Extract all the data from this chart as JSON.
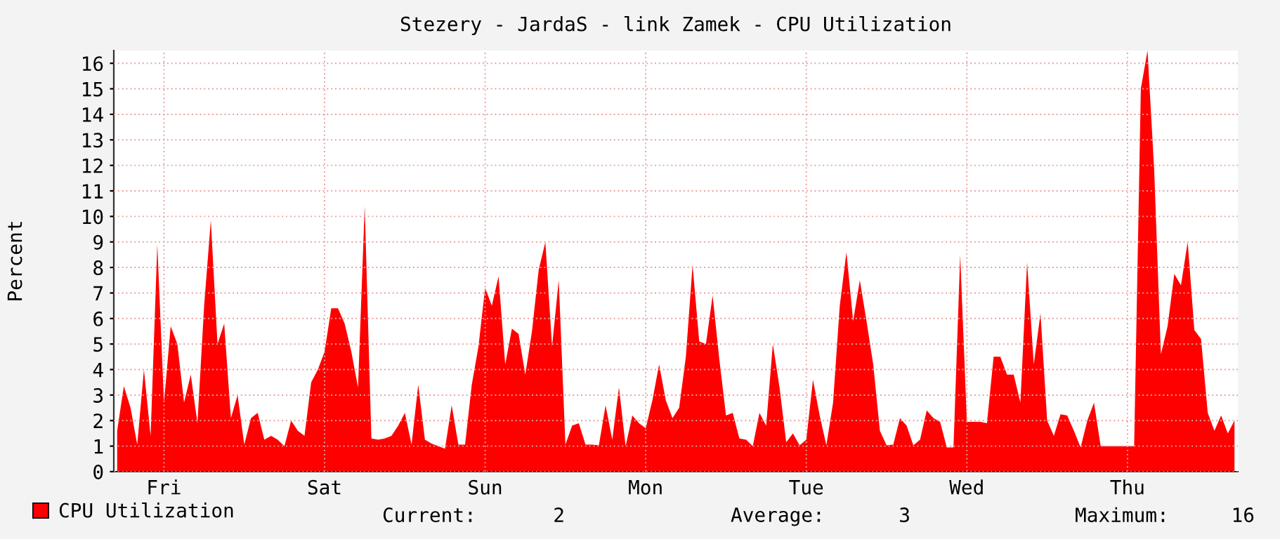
{
  "chart_data": {
    "type": "area",
    "title": "Stezery - JardaS - link Zamek - CPU Utilization",
    "ylabel": "Percent",
    "ylim": [
      0,
      16.5
    ],
    "yticks": [
      0,
      1,
      2,
      3,
      4,
      5,
      6,
      7,
      8,
      9,
      10,
      11,
      12,
      13,
      14,
      15,
      16
    ],
    "grid": true,
    "legend": "bottom left",
    "annotations": [
      "Current:",
      "2",
      "Average:",
      "3",
      "Maximum:",
      "16"
    ],
    "categories": [
      null,
      null,
      null,
      null,
      null,
      null,
      null,
      "Fri",
      null,
      null,
      null,
      null,
      null,
      null,
      null,
      null,
      null,
      null,
      null,
      null,
      null,
      null,
      null,
      null,
      null,
      null,
      null,
      null,
      null,
      null,
      null,
      "Sat",
      null,
      null,
      null,
      null,
      null,
      null,
      null,
      null,
      null,
      null,
      null,
      null,
      null,
      null,
      null,
      null,
      null,
      null,
      null,
      null,
      null,
      null,
      null,
      "Sun",
      null,
      null,
      null,
      null,
      null,
      null,
      null,
      null,
      null,
      null,
      null,
      null,
      null,
      null,
      null,
      null,
      null,
      null,
      null,
      null,
      null,
      null,
      null,
      "Mon",
      null,
      null,
      null,
      null,
      null,
      null,
      null,
      null,
      null,
      null,
      null,
      null,
      null,
      null,
      null,
      null,
      null,
      null,
      null,
      null,
      null,
      null,
      null,
      "Tue",
      null,
      null,
      null,
      null,
      null,
      null,
      null,
      null,
      null,
      null,
      null,
      null,
      null,
      null,
      null,
      null,
      null,
      null,
      null,
      null,
      null,
      null,
      null,
      "Wed",
      null,
      null,
      null,
      null,
      null,
      null,
      null,
      null,
      null,
      null,
      null,
      null,
      null,
      null,
      null,
      null,
      null,
      null,
      null,
      null,
      null,
      null,
      null,
      "Thu",
      null,
      null,
      null,
      null,
      null,
      null,
      null,
      null,
      null,
      null,
      null,
      null,
      null,
      null,
      null,
      null
    ],
    "series": [
      {
        "name": "CPU Utilization",
        "color": "#ff0000",
        "values": [
          1.6,
          3.35,
          2.5,
          1.06,
          4.0,
          1.4,
          8.9,
          2.7,
          5.7,
          5.0,
          2.7,
          3.8,
          1.9,
          6.5,
          9.85,
          5.0,
          5.8,
          2.1,
          3.0,
          1.06,
          2.1,
          2.3,
          1.25,
          1.4,
          1.25,
          1.0,
          2.0,
          1.6,
          1.4,
          3.5,
          4.0,
          4.7,
          6.4,
          6.4,
          5.8,
          4.7,
          3.3,
          10.4,
          1.3,
          1.25,
          1.3,
          1.4,
          1.8,
          2.3,
          1.06,
          3.4,
          1.25,
          1.1,
          1.0,
          0.9,
          2.6,
          1.06,
          1.06,
          3.4,
          4.9,
          7.2,
          6.5,
          7.65,
          4.2,
          5.6,
          5.4,
          3.8,
          5.5,
          7.9,
          9.0,
          4.9,
          7.5,
          1.06,
          1.8,
          1.9,
          1.06,
          1.06,
          1.03,
          2.6,
          1.25,
          3.3,
          1.0,
          2.2,
          1.9,
          1.7,
          2.8,
          4.2,
          2.8,
          2.1,
          2.5,
          4.5,
          8.1,
          5.1,
          5.0,
          6.9,
          4.4,
          2.2,
          2.3,
          1.3,
          1.25,
          1.0,
          2.3,
          1.8,
          5.0,
          3.3,
          1.15,
          1.5,
          1.03,
          1.25,
          3.6,
          2.2,
          1.03,
          2.7,
          6.5,
          8.6,
          5.9,
          7.5,
          5.9,
          4.2,
          1.6,
          1.03,
          1.06,
          2.1,
          1.8,
          1.03,
          1.25,
          2.4,
          2.1,
          1.95,
          0.95,
          0.95,
          8.5,
          1.95,
          1.95,
          1.95,
          1.9,
          4.5,
          4.5,
          3.8,
          3.8,
          2.7,
          8.2,
          4.2,
          6.2,
          2.0,
          1.4,
          2.25,
          2.2,
          1.6,
          0.95,
          2.0,
          2.7,
          1.0,
          1.0,
          1.0,
          1.0,
          1.0,
          1.0,
          15.0,
          16.5,
          11.8,
          4.6,
          5.7,
          7.75,
          7.3,
          9.0,
          5.55,
          5.2,
          2.3,
          1.6,
          2.2,
          1.5,
          2.0
        ]
      }
    ]
  }
}
